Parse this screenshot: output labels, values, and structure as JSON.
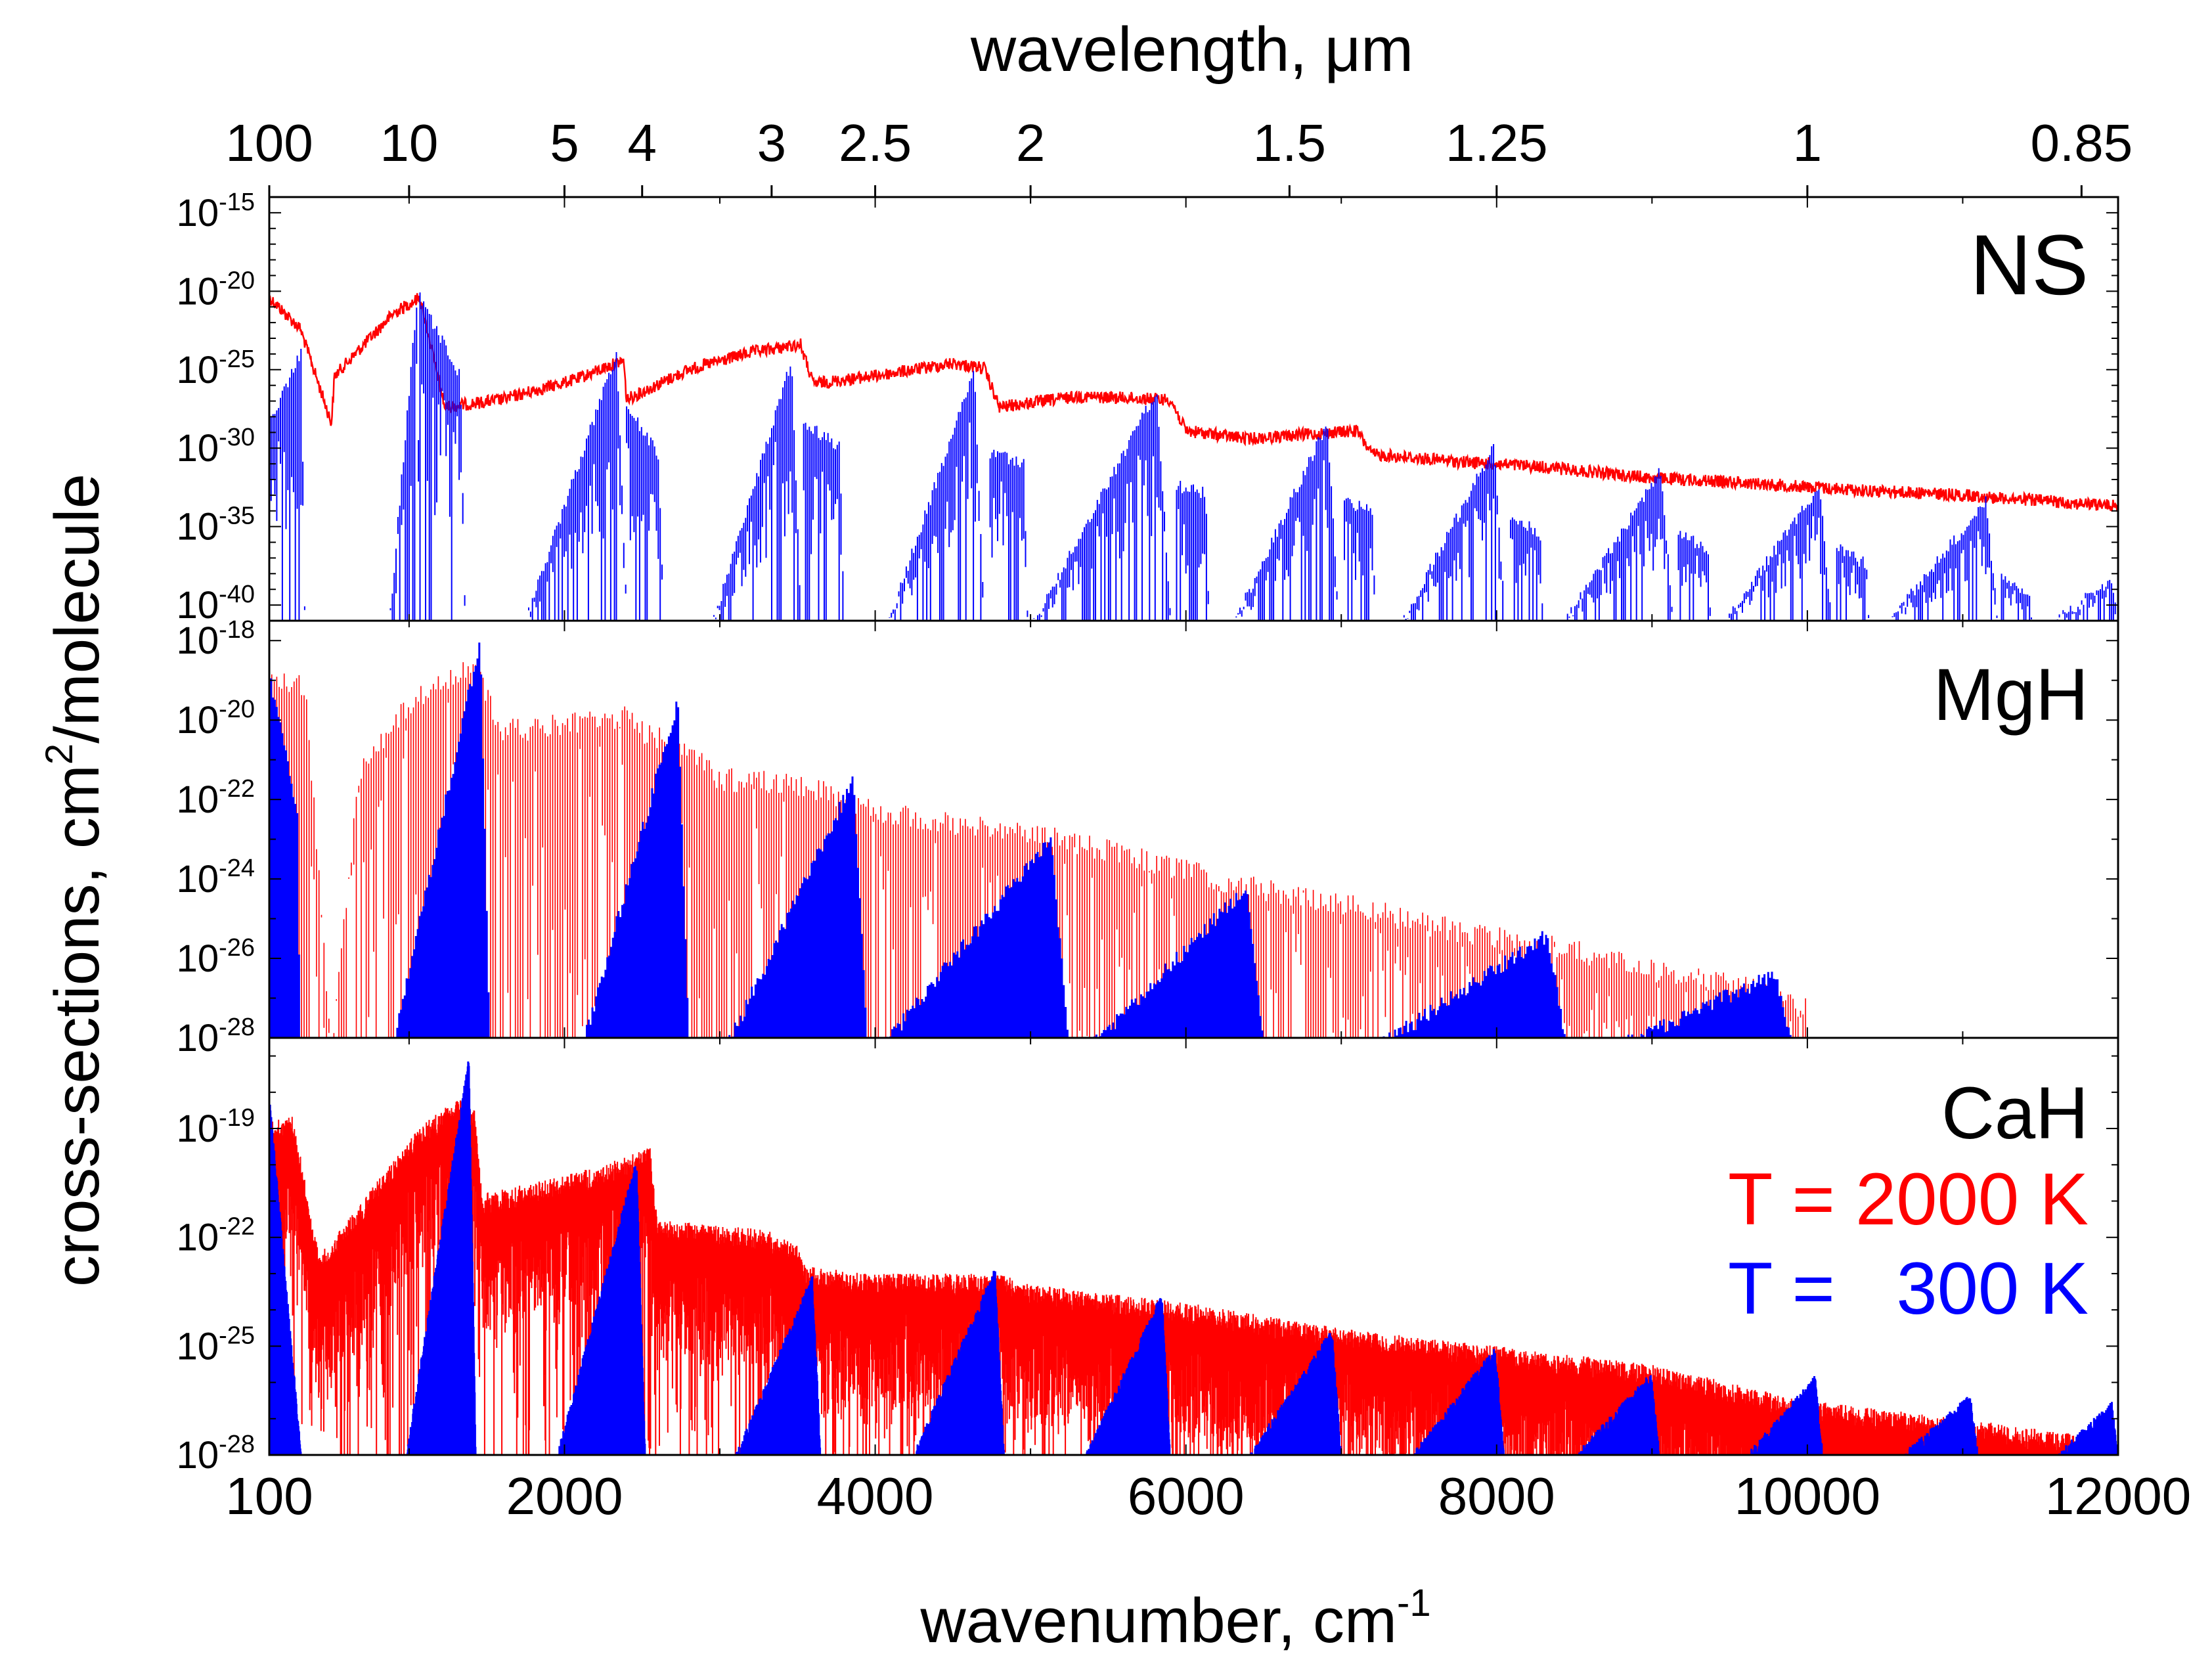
{
  "chart_data": {
    "type": "line",
    "x_top_label": "wavelength, μm",
    "x_top_ticks": [
      "100",
      "10",
      "5",
      "4",
      "3",
      "2.5",
      "2",
      "1.5",
      "1.25",
      "1",
      "0.85"
    ],
    "x_top_tick_wavelengths_um": [
      100,
      10,
      5,
      4,
      3,
      2.5,
      2,
      1.5,
      1.25,
      1,
      0.85
    ],
    "xlabel_main": "wavenumber, cm",
    "xlabel_sup": "-1",
    "ylabel_main": "cross-sections, cm",
    "ylabel_sup": "2",
    "ylabel_tail": "/molecule",
    "x_range": [
      100,
      12000
    ],
    "x_tick_values": [
      100,
      2000,
      4000,
      6000,
      8000,
      10000,
      12000
    ],
    "x_ticks": [
      "100",
      "2000",
      "4000",
      "6000",
      "8000",
      "10000",
      "12000"
    ],
    "legend": [
      {
        "label": "T = 2000 K",
        "color": "#ff0000"
      },
      {
        "label": "T =   300 K",
        "color": "#0000ff"
      }
    ],
    "panels": [
      {
        "name": "NS",
        "ylog_range": [
          -41,
          -14
        ],
        "y_tick_exponents": [
          -15,
          -20,
          -25,
          -30,
          -35,
          -40
        ],
        "y_tick_labels": [
          "10",
          "10",
          "10",
          "10",
          "10",
          "10"
        ],
        "y_tick_sups": [
          "-15",
          "-20",
          "-25",
          "-30",
          "-35",
          "-40"
        ],
        "series": [
          {
            "name": "T = 2000 K",
            "color": "#ff0000",
            "style": "envelope",
            "noise": 0.8,
            "points": [
              [
                100,
                -20
              ],
              [
                300,
                -22
              ],
              [
                500,
                -28
              ],
              [
                520,
                -25
              ],
              [
                900,
                -21
              ],
              [
                1070,
                -20
              ],
              [
                1230,
                -27
              ],
              [
                1600,
                -26.5
              ],
              [
                2080,
                -25.2
              ],
              [
                2380,
                -24
              ],
              [
                2400,
                -26.5
              ],
              [
                2800,
                -24.6
              ],
              [
                3200,
                -23.5
              ],
              [
                3520,
                -23
              ],
              [
                3600,
                -25.5
              ],
              [
                4000,
                -25
              ],
              [
                4500,
                -24.2
              ],
              [
                4700,
                -24.5
              ],
              [
                4800,
                -27
              ],
              [
                5300,
                -26.3
              ],
              [
                5900,
                -26.5
              ],
              [
                6000,
                -28.5
              ],
              [
                6400,
                -29
              ],
              [
                7100,
                -28.5
              ],
              [
                7200,
                -30
              ],
              [
                7800,
                -30.5
              ],
              [
                8300,
                -30.8
              ],
              [
                8500,
                -31
              ],
              [
                9000,
                -31.5
              ],
              [
                9600,
                -31.8
              ],
              [
                10200,
                -32.2
              ],
              [
                11000,
                -32.6
              ],
              [
                12000,
                -33.3
              ]
            ]
          },
          {
            "name": "T = 300 K",
            "color": "#0000ff",
            "style": "bands",
            "dense": false,
            "spacing": 12,
            "decay": 0.5,
            "bands": [
              [
                100,
                330,
                -28,
                -23.5,
                -41
              ],
              [
                880,
                1070,
                -40,
                -20,
                -40
              ],
              [
                1070,
                1360,
                -20,
                -25,
                -40
              ],
              [
                1770,
                2400,
                -40,
                -23.5,
                -40
              ],
              [
                2400,
                2630,
                -27,
                -30,
                -38
              ],
              [
                2950,
                3520,
                -41,
                -24,
                -40
              ],
              [
                3540,
                3800,
                -28,
                -29.5,
                -41
              ],
              [
                4080,
                4700,
                -41,
                -24.5,
                -40
              ],
              [
                4740,
                4980,
                -30,
                -30.5,
                -40
              ],
              [
                5010,
                5900,
                -41,
                -26,
                -40
              ],
              [
                5940,
                6150,
                -32,
                -32.5,
                -41
              ],
              [
                6300,
                6980,
                -41,
                -28,
                -40
              ],
              [
                7020,
                7220,
                -33,
                -33.5,
                -41
              ],
              [
                7380,
                8050,
                -41,
                -29.5,
                -40
              ],
              [
                8090,
                8300,
                -34,
                -35,
                -41
              ],
              [
                8420,
                9130,
                -41,
                -31,
                -40
              ],
              [
                9170,
                9380,
                -35,
                -36,
                -41
              ],
              [
                9450,
                10150,
                -41,
                -32,
                -40
              ],
              [
                10190,
                10400,
                -36,
                -37,
                -41
              ],
              [
                10500,
                11220,
                -41,
                -33,
                -40
              ],
              [
                11250,
                11450,
                -38,
                -39,
                -41
              ],
              [
                11550,
                12000,
                -41,
                -38,
                -41
              ]
            ]
          }
        ]
      },
      {
        "name": "MgH",
        "ylog_range": [
          -28,
          -17.5
        ],
        "y_tick_exponents": [
          -18,
          -20,
          -22,
          -24,
          -26,
          -28
        ],
        "y_tick_labels": [
          "10",
          "10",
          "10",
          "10",
          "10",
          "10"
        ],
        "y_tick_sups": [
          "-18",
          "-20",
          "-22",
          "-24",
          "-26",
          "-28"
        ],
        "series": [
          {
            "name": "T = 2000 K",
            "color": "#ff0000",
            "style": "spiky",
            "spacing": 16,
            "points": [
              [
                100,
                -18.7
              ],
              [
                330,
                -18.8
              ],
              [
                500,
                -28
              ],
              [
                680,
                -21
              ],
              [
                1000,
                -19.3
              ],
              [
                1300,
                -18.5
              ],
              [
                1450,
                -18.5
              ],
              [
                1600,
                -20
              ],
              [
                2400,
                -19.6
              ],
              [
                2500,
                -20
              ],
              [
                2800,
                -20.5
              ],
              [
                3000,
                -21.2
              ],
              [
                3500,
                -21.3
              ],
              [
                4000,
                -22
              ],
              [
                4500,
                -22.3
              ],
              [
                5000,
                -22.5
              ],
              [
                5500,
                -23
              ],
              [
                6000,
                -23.5
              ],
              [
                6500,
                -24
              ],
              [
                7000,
                -24.3
              ],
              [
                7500,
                -24.8
              ],
              [
                8000,
                -25.2
              ],
              [
                8500,
                -25.5
              ],
              [
                9000,
                -26
              ],
              [
                9500,
                -26.3
              ],
              [
                10000,
                -27
              ]
            ]
          },
          {
            "name": "T = 300 K",
            "color": "#0000ff",
            "style": "bands",
            "dense": true,
            "spacing": 12,
            "decay": 0.5,
            "bands": [
              [
                100,
                300,
                -18.7,
                -22,
                -28
              ],
              [
                900,
                1520,
                -28,
                -17.8,
                -28
              ],
              [
                2120,
                2800,
                -28,
                -19.3,
                -28
              ],
              [
                3050,
                3950,
                -28,
                -21.3,
                -28
              ],
              [
                4050,
                5250,
                -28,
                -22.8,
                -28
              ],
              [
                5400,
                6500,
                -28,
                -24,
                -28
              ],
              [
                7250,
                8450,
                -28,
                -25.2,
                -28
              ],
              [
                8800,
                9900,
                -28,
                -26.2,
                -28
              ]
            ]
          }
        ]
      },
      {
        "name": "CaH",
        "ylog_range": [
          -28,
          -16.5
        ],
        "y_tick_exponents": [
          -19,
          -22,
          -25,
          -28
        ],
        "y_tick_labels": [
          "10",
          "10",
          "10",
          "10"
        ],
        "y_tick_sups": [
          "-19",
          "-22",
          "-25",
          "-28"
        ],
        "series": [
          {
            "name": "T = 2000 K",
            "color": "#ff0000",
            "style": "dense",
            "spacing": 3,
            "points": [
              [
                100,
                -18.8
              ],
              [
                250,
                -18.6
              ],
              [
                420,
                -22.5
              ],
              [
                700,
                -21
              ],
              [
                1050,
                -19
              ],
              [
                1300,
                -18.2
              ],
              [
                1350,
                -18.2
              ],
              [
                1420,
                -18.5
              ],
              [
                1470,
                -20.8
              ],
              [
                2000,
                -20.3
              ],
              [
                2250,
                -20
              ],
              [
                2550,
                -19.5
              ],
              [
                2600,
                -21.5
              ],
              [
                3300,
                -21.8
              ],
              [
                3500,
                -22.2
              ],
              [
                3550,
                -22.8
              ],
              [
                4000,
                -23
              ],
              [
                4500,
                -23
              ],
              [
                4800,
                -23
              ],
              [
                5000,
                -23.3
              ],
              [
                6000,
                -23.8
              ],
              [
                7000,
                -24.5
              ],
              [
                8000,
                -25
              ],
              [
                9000,
                -25.5
              ],
              [
                10000,
                -26.5
              ],
              [
                11000,
                -27
              ],
              [
                12000,
                -27.6
              ]
            ]
          },
          {
            "name": "T = 300 K",
            "color": "#0000ff",
            "style": "bands",
            "dense": true,
            "spacing": 2.5,
            "decay": 0.08,
            "bands": [
              [
                100,
                330,
                -18,
                -28,
                -28
              ],
              [
                980,
                1430,
                -28,
                -17,
                -28
              ],
              [
                1950,
                2520,
                -28,
                -19.8,
                -28
              ],
              [
                3100,
                3650,
                -28,
                -23,
                -28
              ],
              [
                4240,
                4830,
                -28,
                -22.8,
                -28
              ],
              [
                5350,
                5900,
                -28,
                -23.5,
                -28
              ],
              [
                6400,
                7000,
                -28,
                -24.5,
                -28
              ],
              [
                7450,
                8050,
                -28,
                -25
              ],
              [
                8500,
                9050,
                -28,
                -25.7,
                -28
              ],
              [
                9600,
                10100,
                -28,
                -25.8,
                -28
              ],
              [
                10600,
                11100,
                -28,
                -26.3,
                -28
              ],
              [
                11600,
                12000,
                -28,
                -26.5,
                -28
              ]
            ]
          }
        ]
      }
    ]
  }
}
